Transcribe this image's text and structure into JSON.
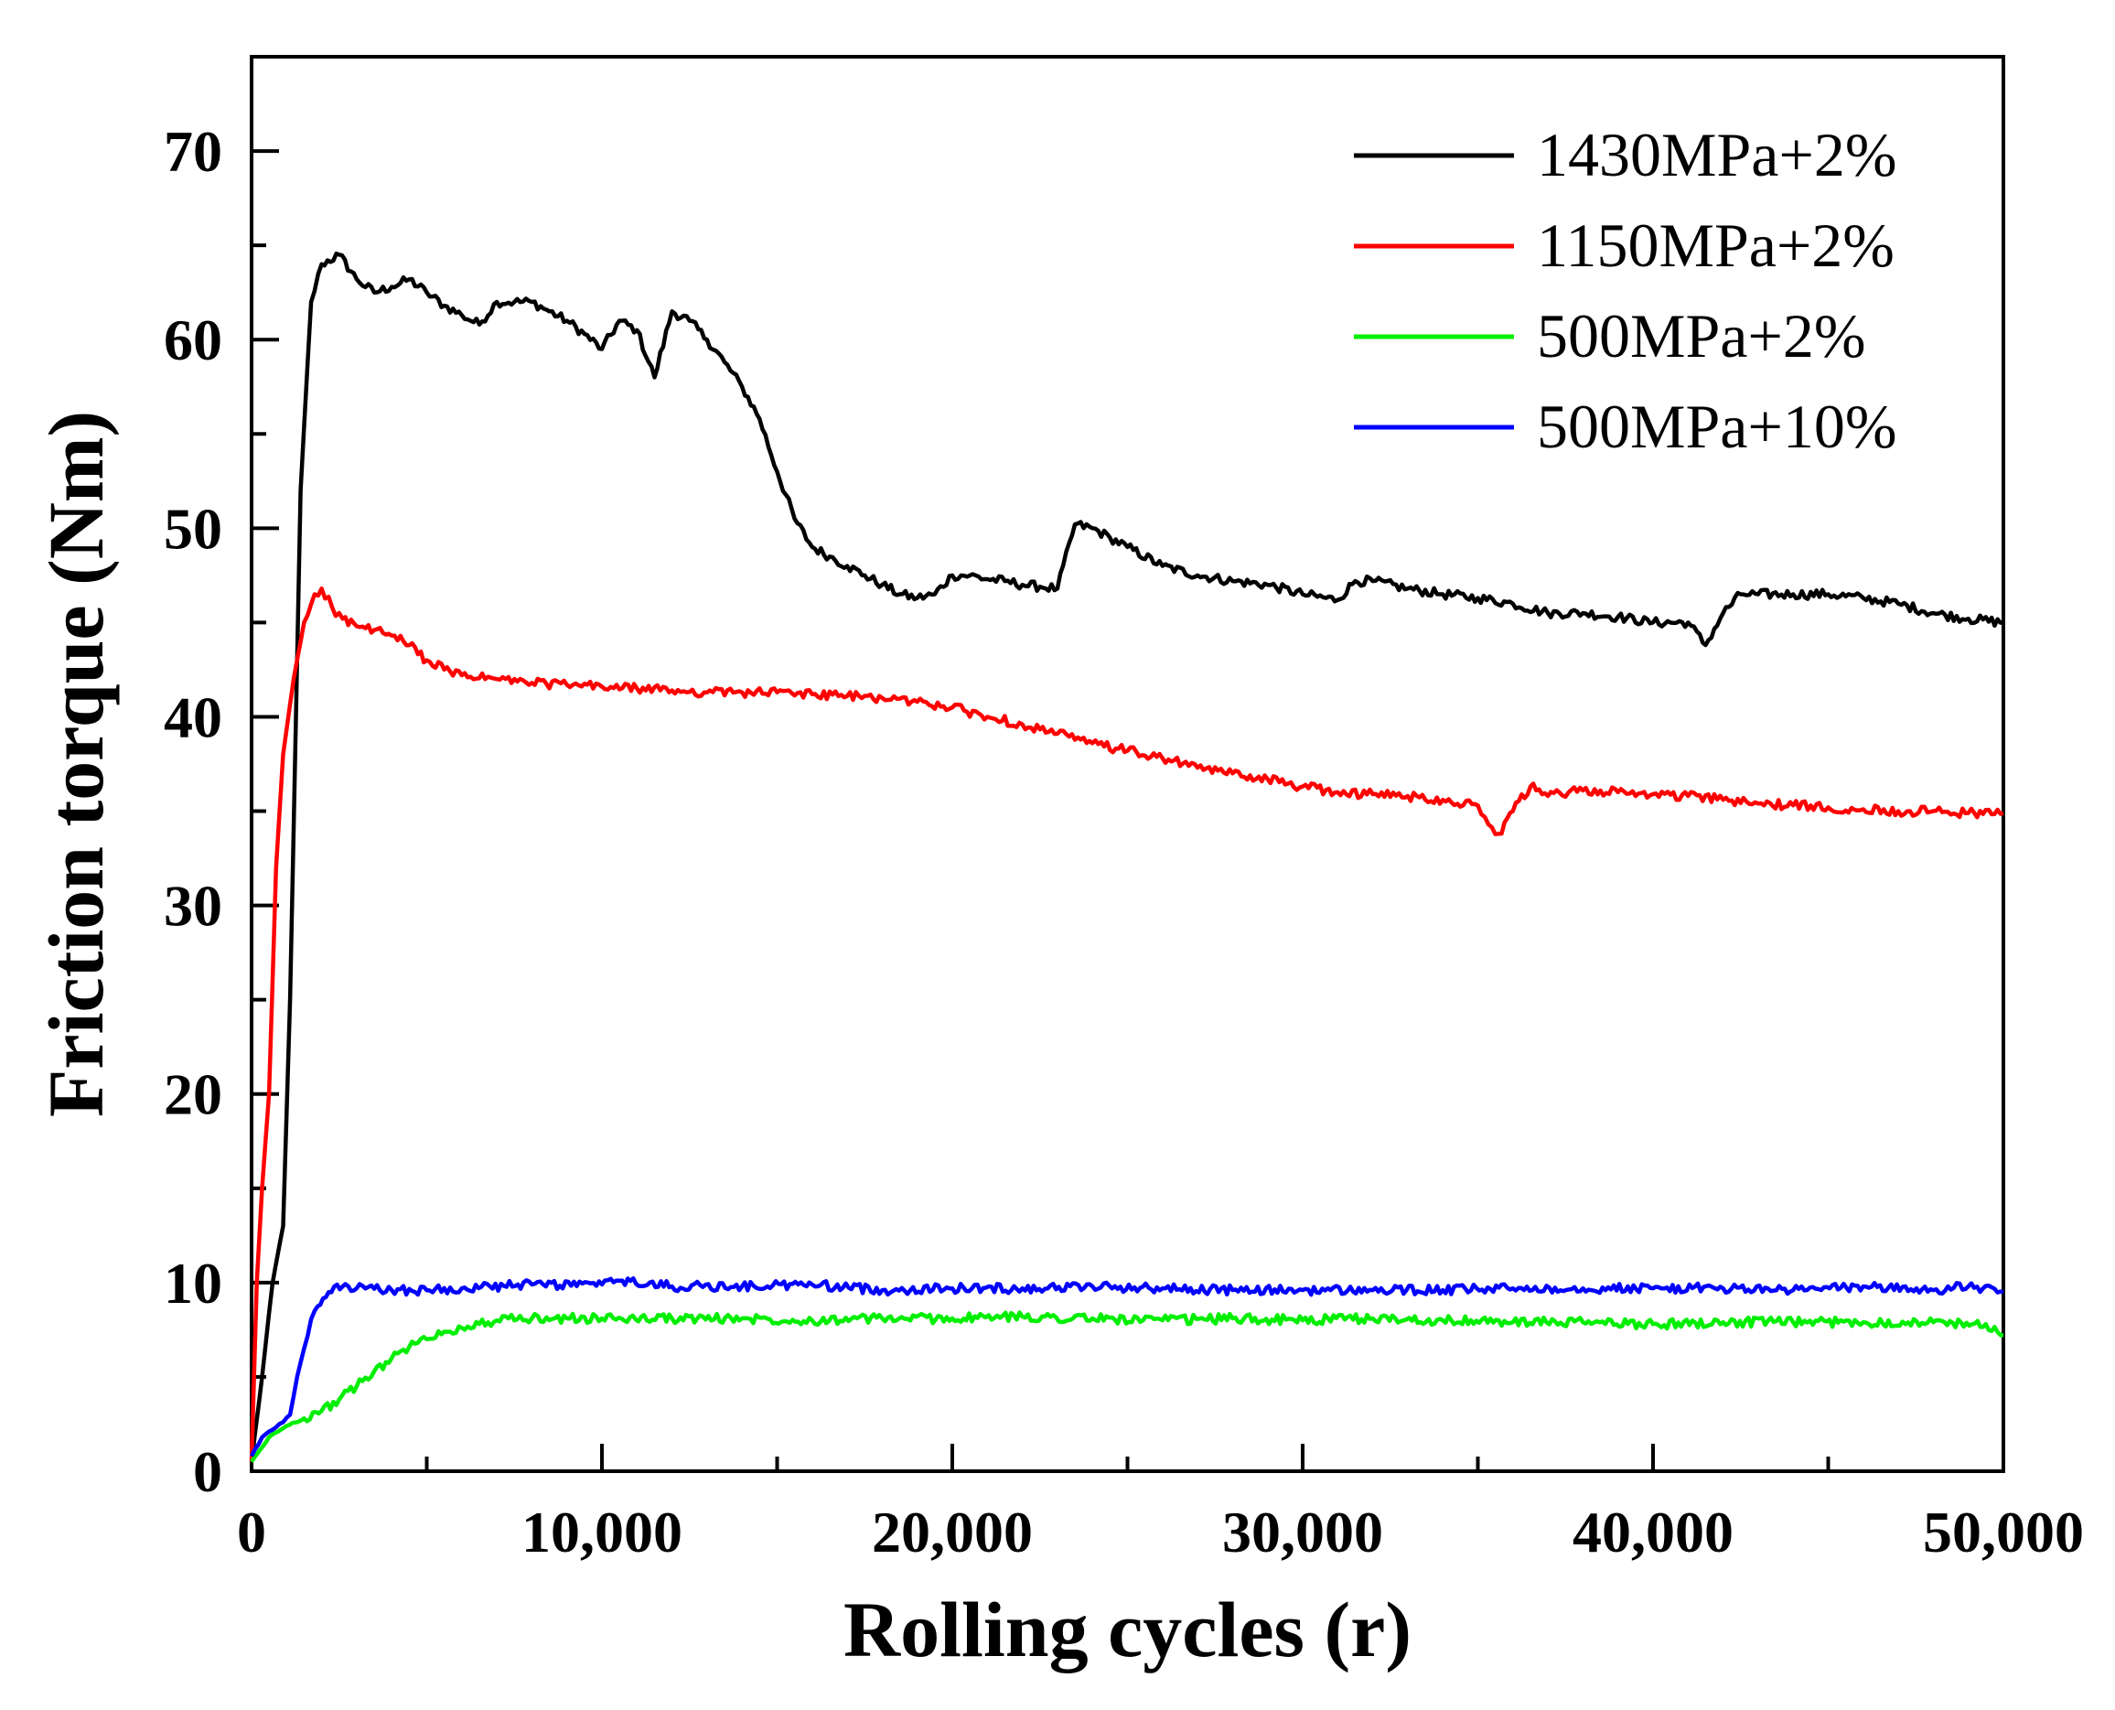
{
  "chart_data": {
    "type": "line",
    "title": "",
    "xlabel": "Rolling cycles (r)",
    "ylabel": "Friction torque (Nm)",
    "xlim": [
      0,
      50000
    ],
    "ylim": [
      0,
      75
    ],
    "x_ticks": [
      0,
      10000,
      20000,
      30000,
      40000,
      50000
    ],
    "x_tick_labels": [
      "0",
      "10,000",
      "20,000",
      "30,000",
      "40,000",
      "50,000"
    ],
    "x_minor_step": 5000,
    "y_ticks": [
      0,
      10,
      20,
      30,
      40,
      50,
      60,
      70
    ],
    "y_tick_labels": [
      "0",
      "10",
      "20",
      "30",
      "40",
      "50",
      "60",
      "70"
    ],
    "y_minor_step": 5,
    "grid": false,
    "legend_position": "top-right",
    "series": [
      {
        "name": "1430MPa+2%",
        "color": "#000000",
        "x": [
          0,
          300,
          600,
          900,
          1100,
          1400,
          1700,
          2000,
          2500,
          3000,
          3500,
          4000,
          4500,
          5000,
          5500,
          6000,
          6500,
          7000,
          7500,
          8000,
          8500,
          9000,
          9500,
          10000,
          10500,
          11000,
          11500,
          12000,
          12500,
          13000,
          13500,
          14000,
          14500,
          15000,
          15500,
          16000,
          16500,
          17000,
          17500,
          18000,
          18500,
          19000,
          19500,
          20000,
          20500,
          21000,
          21500,
          22000,
          22500,
          23000,
          23500,
          24000,
          24500,
          25000,
          26000,
          27000,
          28000,
          29000,
          30000,
          31000,
          31500,
          32000,
          33000,
          34000,
          35000,
          36000,
          37000,
          38000,
          39000,
          40000,
          41000,
          41500,
          42000,
          42500,
          43000,
          44000,
          45000,
          46000,
          47000,
          48000,
          49000,
          50000
        ],
        "values": [
          0.5,
          5,
          10,
          13,
          25,
          52,
          62,
          64,
          64.5,
          63.2,
          62.5,
          62.8,
          63.2,
          62.5,
          61.8,
          61.3,
          60.8,
          62,
          62,
          62,
          61.5,
          61,
          60.3,
          59.5,
          61,
          60.5,
          58,
          61.5,
          61,
          60,
          58.8,
          57.5,
          55.8,
          53,
          50.5,
          49,
          48.5,
          48,
          47.5,
          47,
          46.5,
          46.3,
          46.5,
          47.5,
          47.5,
          47.3,
          47.2,
          47,
          46.9,
          46.8,
          50.2,
          50,
          49.5,
          49,
          48,
          47.5,
          47.2,
          47,
          46.5,
          46.2,
          47.2,
          47.2,
          46.8,
          46.5,
          46.3,
          46,
          45.5,
          45.5,
          45.3,
          45,
          45,
          43.8,
          45.5,
          46.5,
          46.5,
          46.5,
          46.5,
          46.3,
          46,
          45.5,
          45.2,
          45
        ]
      },
      {
        "name": "1150MPa+2%",
        "color": "#ff0000",
        "x": [
          0,
          150,
          300,
          500,
          700,
          900,
          1200,
          1500,
          1800,
          2000,
          2300,
          2600,
          3000,
          3500,
          4000,
          4500,
          5000,
          5500,
          6000,
          7000,
          8000,
          9000,
          10000,
          11000,
          12000,
          13000,
          14000,
          15000,
          16000,
          17000,
          18000,
          19000,
          20000,
          21000,
          22000,
          23000,
          24000,
          25000,
          26000,
          27000,
          28000,
          29000,
          30000,
          31000,
          32000,
          33000,
          34000,
          35000,
          35300,
          35600,
          36000,
          36500,
          37000,
          38000,
          39000,
          40000,
          41000,
          42000,
          43000,
          44000,
          45000,
          46000,
          47000,
          48000,
          49000,
          50000
        ],
        "values": [
          0.5,
          10,
          15,
          20,
          32,
          38,
          42,
          45,
          46.5,
          46.8,
          45.8,
          45.2,
          44.8,
          44.6,
          44.3,
          43.8,
          43,
          42.5,
          42.2,
          42,
          41.8,
          41.7,
          41.6,
          41.5,
          41.4,
          41.3,
          41.3,
          41.3,
          41.2,
          41.1,
          41,
          40.8,
          40.5,
          40,
          39.6,
          39.1,
          38.6,
          38.2,
          37.8,
          37.3,
          37,
          36.7,
          36.3,
          36,
          35.9,
          35.8,
          35.6,
          35.3,
          34.3,
          33.8,
          35,
          36.3,
          35.8,
          36.1,
          36,
          35.9,
          35.8,
          35.6,
          35.4,
          35.3,
          35.2,
          35.1,
          35,
          35,
          34.9,
          34.9
        ]
      },
      {
        "name": "500MPa+2%",
        "color": "#00ee00",
        "x": [
          0,
          500,
          1000,
          1500,
          2000,
          2500,
          3000,
          3500,
          4000,
          4500,
          5000,
          5500,
          6000,
          6500,
          7000,
          8000,
          9000,
          10000,
          12000,
          14000,
          16000,
          18000,
          20000,
          22000,
          24000,
          26000,
          28000,
          30000,
          32000,
          34000,
          36000,
          38000,
          40000,
          42000,
          44000,
          46000,
          48000,
          49500,
          50000
        ],
        "values": [
          0.5,
          1.8,
          2.4,
          2.8,
          3.2,
          3.8,
          4.5,
          5.3,
          6,
          6.6,
          7,
          7.4,
          7.6,
          7.8,
          8,
          8.1,
          8.1,
          8.1,
          8.1,
          8.1,
          8,
          8.1,
          8.1,
          8.2,
          8.1,
          8,
          8.1,
          8,
          8.1,
          8,
          7.9,
          7.9,
          7.8,
          7.9,
          7.9,
          7.9,
          7.9,
          7.8,
          7.2
        ]
      },
      {
        "name": "500MPa+10%",
        "color": "#0000ff",
        "x": [
          0,
          300,
          600,
          900,
          1100,
          1300,
          1500,
          1800,
          2200,
          2600,
          3000,
          4000,
          5000,
          6000,
          8000,
          10000,
          10500,
          12000,
          14000,
          16000,
          18000,
          20000,
          22000,
          24000,
          26000,
          28000,
          30000,
          32000,
          34000,
          36000,
          38000,
          40000,
          42000,
          44000,
          46000,
          48000,
          49000,
          50000
        ],
        "values": [
          0.8,
          1.8,
          2.2,
          2.6,
          3,
          5,
          6.5,
          8.5,
          9.5,
          9.8,
          9.7,
          9.6,
          9.6,
          9.7,
          9.9,
          9.9,
          10.1,
          9.8,
          9.8,
          9.9,
          9.6,
          9.7,
          9.7,
          9.8,
          9.7,
          9.6,
          9.6,
          9.6,
          9.6,
          9.7,
          9.7,
          9.7,
          9.7,
          9.6,
          9.8,
          9.6,
          9.8,
          9.5
        ]
      }
    ]
  }
}
